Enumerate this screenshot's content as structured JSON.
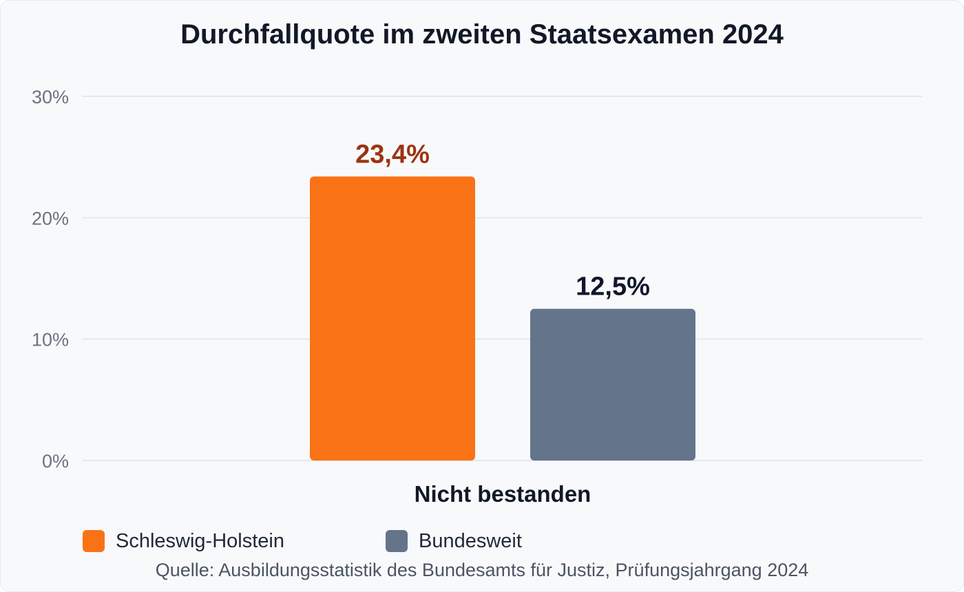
{
  "chart_data": {
    "type": "bar",
    "title": "Durchfallquote im zweiten Staatsexamen 2024",
    "categories": [
      "Nicht bestanden"
    ],
    "series": [
      {
        "name": "Schleswig-Holstein",
        "values": [
          23.4
        ],
        "value_label": "23,4%",
        "color": "#f97316",
        "label_color": "#9a3412"
      },
      {
        "name": "Bundesweit",
        "values": [
          12.5
        ],
        "value_label": "12,5%",
        "color": "#64748b",
        "label_color": "#0f172a"
      }
    ],
    "ylim": [
      0,
      30
    ],
    "yticks": [
      {
        "value": 0,
        "label": "0%"
      },
      {
        "value": 10,
        "label": "10%"
      },
      {
        "value": 20,
        "label": "20%"
      },
      {
        "value": 30,
        "label": "30%"
      }
    ],
    "grid": true,
    "legend": "bottom-left",
    "source": "Quelle: Ausbildungsstatistik des Bundesamts für Justiz, Prüfungsjahrgang 2024"
  }
}
